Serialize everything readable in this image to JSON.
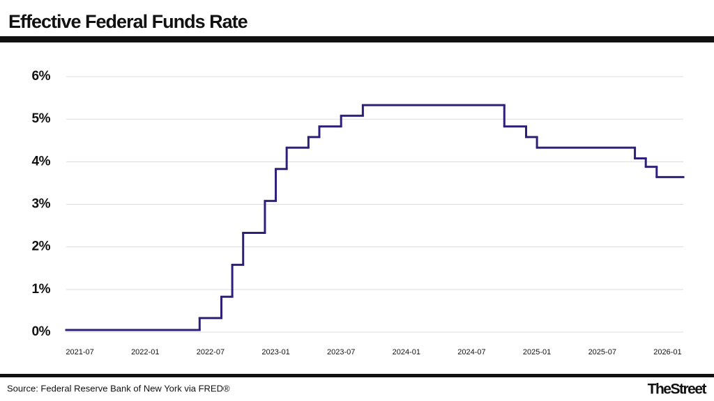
{
  "chart_data": {
    "type": "step",
    "title": "Effective Federal Funds Rate",
    "source": "Source: Federal Reserve Bank of New York via FRED®",
    "brand": "TheStreet",
    "x": [
      "2021-06",
      "2022-06",
      "2022-08",
      "2022-09",
      "2022-10",
      "2022-12",
      "2023-01",
      "2023-02",
      "2023-04",
      "2023-05",
      "2023-07",
      "2023-09",
      "2024-10",
      "2024-12",
      "2025-01",
      "2025-10",
      "2025-11",
      "2025-12"
    ],
    "values": [
      0.05,
      0.33,
      0.83,
      1.58,
      2.33,
      3.08,
      3.83,
      4.33,
      4.58,
      4.83,
      5.08,
      5.33,
      4.83,
      4.58,
      4.33,
      4.08,
      3.88,
      3.64
    ],
    "color": "#2e1f7a",
    "xlim": [
      "2021-06",
      "2026-02"
    ],
    "xticks": [
      "2021-07",
      "2022-01",
      "2022-07",
      "2023-01",
      "2023-07",
      "2024-01",
      "2024-07",
      "2025-01",
      "2025-07",
      "2026-01"
    ],
    "ylim": [
      0,
      6
    ],
    "yticks": [
      {
        "value": 0,
        "label": "0%"
      },
      {
        "value": 1,
        "label": "1%"
      },
      {
        "value": 2,
        "label": "2%"
      },
      {
        "value": 3,
        "label": "3%"
      },
      {
        "value": 4,
        "label": "4%"
      },
      {
        "value": 5,
        "label": "5%"
      },
      {
        "value": 6,
        "label": "6%"
      }
    ],
    "grid": true
  }
}
